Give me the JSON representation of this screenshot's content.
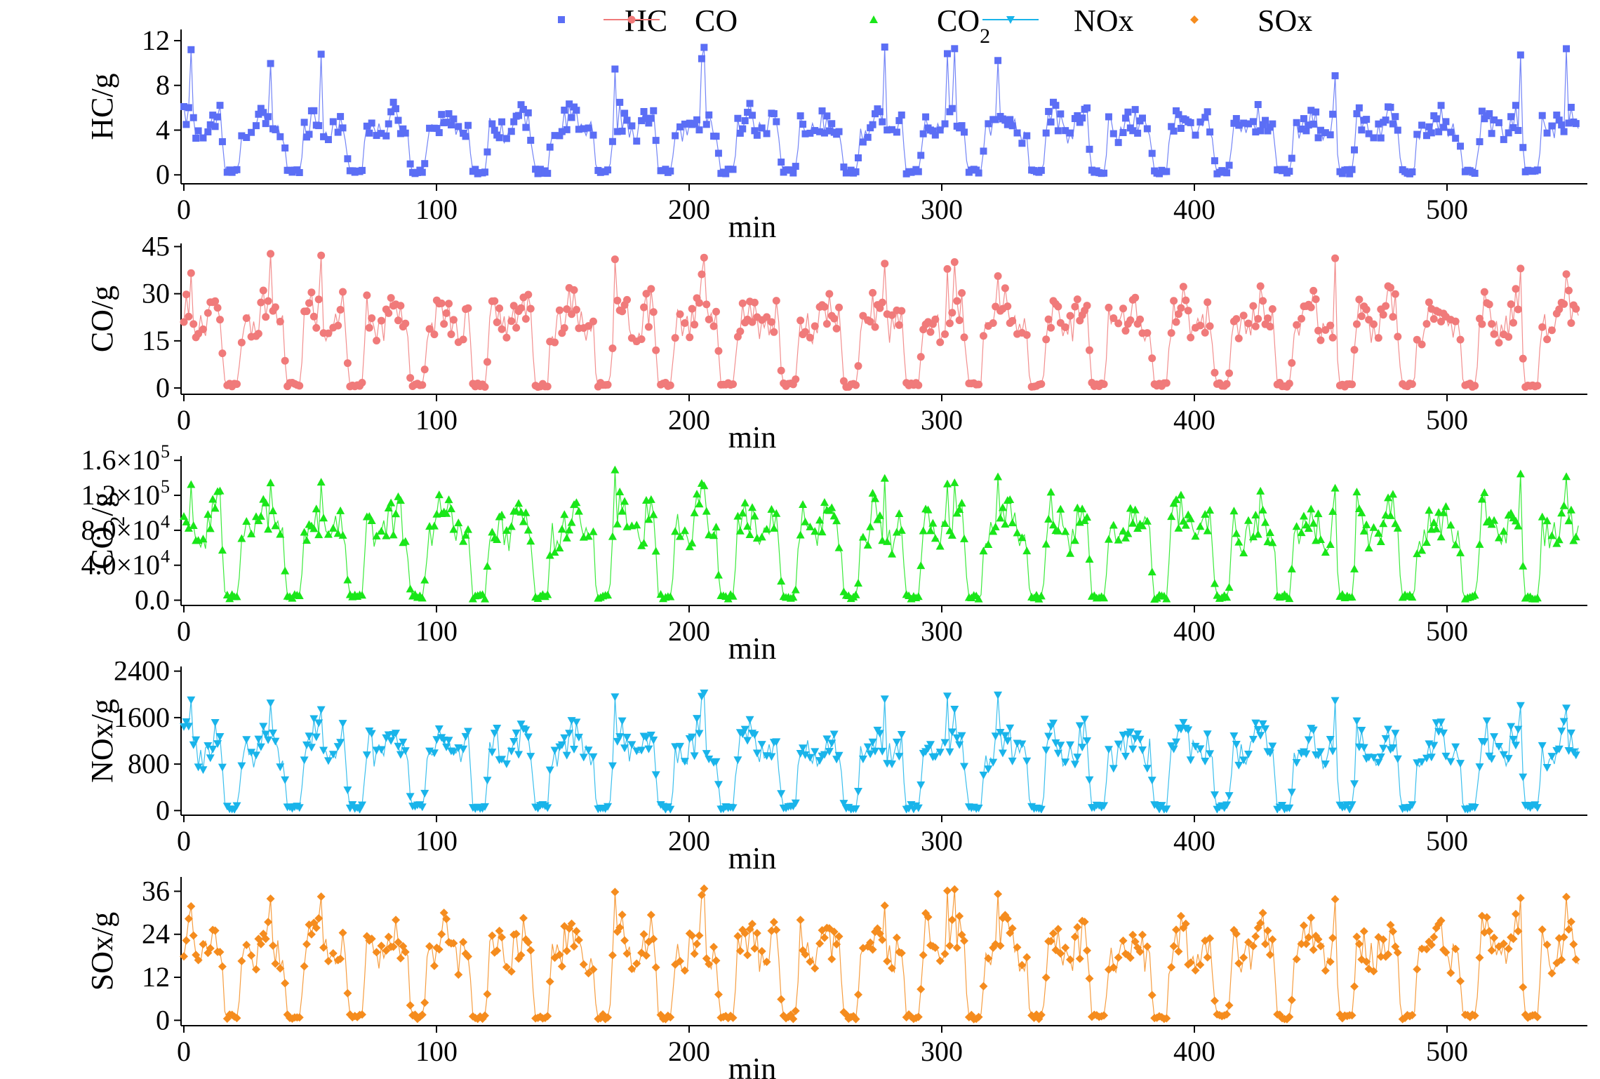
{
  "figure": {
    "type": "multi-panel time series (scatter-line)",
    "time_range_min": [
      0,
      552
    ],
    "sample_count": 580
  },
  "legend": {
    "entries": [
      {
        "label": "HC",
        "sub": "",
        "marker": "square",
        "color": "#5b6ef5"
      },
      {
        "label": "CO",
        "sub": "",
        "marker": "circle",
        "color": "#f07a7a"
      },
      {
        "label": "CO",
        "sub": "2",
        "marker": "triangle-up",
        "color": "#19e619"
      },
      {
        "label": "NOx",
        "sub": "",
        "marker": "triangle-down",
        "color": "#19b4ea"
      },
      {
        "label": "SOx",
        "sub": "",
        "marker": "diamond",
        "color": "#f58c1e"
      }
    ]
  },
  "chart_data": [
    {
      "type": "scatter",
      "series_name": "HC",
      "ylabel": "HC/g",
      "xlabel": "min",
      "xlim": [
        0,
        552
      ],
      "ylim": [
        -0.8,
        13
      ],
      "yticks": [
        0,
        4,
        8,
        12
      ],
      "ytick_labels": [
        "0",
        "4",
        "8",
        "12"
      ],
      "xticks": [
        0,
        100,
        200,
        300,
        400,
        500
      ],
      "xtick_labels": [
        "0",
        "100",
        "200",
        "300",
        "400",
        "500"
      ],
      "color": "#5b6ef5",
      "marker": "square",
      "cycle_period_min": 24.5,
      "active_level": 5.2,
      "peak_level": 11.8,
      "idle_level": 0.3,
      "note": "approx. 22 repeating cycles; plateau values 3-10 g with peaks up to about 12 g, falling to near 0 g between cycles"
    },
    {
      "type": "scatter",
      "series_name": "CO",
      "ylabel": "CO/g",
      "xlabel": "min",
      "xlim": [
        0,
        552
      ],
      "ylim": [
        -2,
        46
      ],
      "yticks": [
        0,
        15,
        30,
        45
      ],
      "ytick_labels": [
        "0",
        "15",
        "30",
        "45"
      ],
      "xticks": [
        0,
        100,
        200,
        300,
        400,
        500
      ],
      "xtick_labels": [
        "0",
        "100",
        "200",
        "300",
        "400",
        "500"
      ],
      "color": "#f07a7a",
      "marker": "circle",
      "cycle_period_min": 24.5,
      "active_level": 26,
      "peak_level": 43,
      "idle_level": 1,
      "note": "plateau values 15-40 g with peaks near 45 g"
    },
    {
      "type": "scatter",
      "series_name": "CO2",
      "ylabel": "CO2/g",
      "xlabel": "min",
      "xlim": [
        0,
        552
      ],
      "ylim": [
        -6000,
        165000
      ],
      "yticks": [
        0,
        40000,
        80000,
        120000,
        160000
      ],
      "ytick_labels": [
        "0.0",
        "4.0×10",
        "8.0×10",
        "1.2×10",
        "1.6×10"
      ],
      "ytick_exponents": [
        "",
        "4",
        "4",
        "5",
        "5"
      ],
      "xticks": [
        0,
        100,
        200,
        300,
        400,
        500
      ],
      "xtick_labels": [
        "0",
        "100",
        "200",
        "300",
        "400",
        "500"
      ],
      "color": "#19e619",
      "marker": "triangle-up",
      "cycle_period_min": 24.5,
      "active_level": 100000,
      "peak_level": 150000,
      "idle_level": 4000,
      "note": "plateau values 8.0e4-1.3e5 g with peaks near 1.5e5 g"
    },
    {
      "type": "scatter",
      "series_name": "NOx",
      "ylabel": "NOx/g",
      "xlabel": "min",
      "xlim": [
        0,
        552
      ],
      "ylim": [
        -80,
        2480
      ],
      "yticks": [
        0,
        800,
        1600,
        2400
      ],
      "ytick_labels": [
        "0",
        "800",
        "1600",
        "2400"
      ],
      "xticks": [
        0,
        100,
        200,
        300,
        400,
        500
      ],
      "xtick_labels": [
        "0",
        "100",
        "200",
        "300",
        "400",
        "500"
      ],
      "color": "#19b4ea",
      "marker": "triangle-down",
      "cycle_period_min": 24.5,
      "active_level": 1300,
      "peak_level": 2050,
      "idle_level": 60,
      "note": "plateau values 1000-1700 g with peaks near 2100 g"
    },
    {
      "type": "scatter",
      "series_name": "SOx",
      "ylabel": "SOx/g",
      "xlabel": "min",
      "xlim": [
        0,
        552
      ],
      "ylim": [
        -1.5,
        40
      ],
      "yticks": [
        0,
        12,
        24,
        36
      ],
      "ytick_labels": [
        "0",
        "12",
        "24",
        "36"
      ],
      "xticks": [
        0,
        100,
        200,
        300,
        400,
        500
      ],
      "xtick_labels": [
        "0",
        "100",
        "200",
        "300",
        "400",
        "500"
      ],
      "color": "#f58c1e",
      "marker": "diamond",
      "cycle_period_min": 24.5,
      "active_level": 24,
      "peak_level": 38,
      "idle_level": 1,
      "note": "plateau values 18-33 g with peaks near 38 g"
    }
  ]
}
